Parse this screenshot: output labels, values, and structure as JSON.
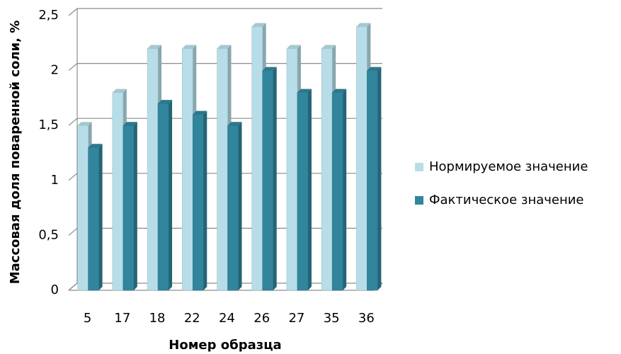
{
  "chart_data": {
    "type": "bar",
    "x_label": "Номер образца",
    "y_label": "Массовая доля поваренной соли, %",
    "categories": [
      "5",
      "17",
      "18",
      "22",
      "24",
      "26",
      "27",
      "35",
      "36"
    ],
    "series": [
      {
        "name": "Нормируемое значение",
        "color": "#b7dde8",
        "values": [
          1.5,
          1.8,
          2.2,
          2.2,
          2.2,
          2.4,
          2.2,
          2.2,
          2.4
        ]
      },
      {
        "name": "Фактическое значение",
        "color": "#31859c",
        "values": [
          1.3,
          1.5,
          1.7,
          1.6,
          1.5,
          2.0,
          1.8,
          1.8,
          2.0
        ]
      }
    ],
    "ylim": [
      0,
      2.5
    ],
    "yticks": [
      0,
      {
        "value": 0.5,
        "label": "0,5"
      },
      1,
      {
        "value": 1.5,
        "label": "1,5"
      },
      2,
      {
        "value": 2.5,
        "label": "2,5"
      }
    ],
    "grid": true,
    "legend": "right"
  }
}
